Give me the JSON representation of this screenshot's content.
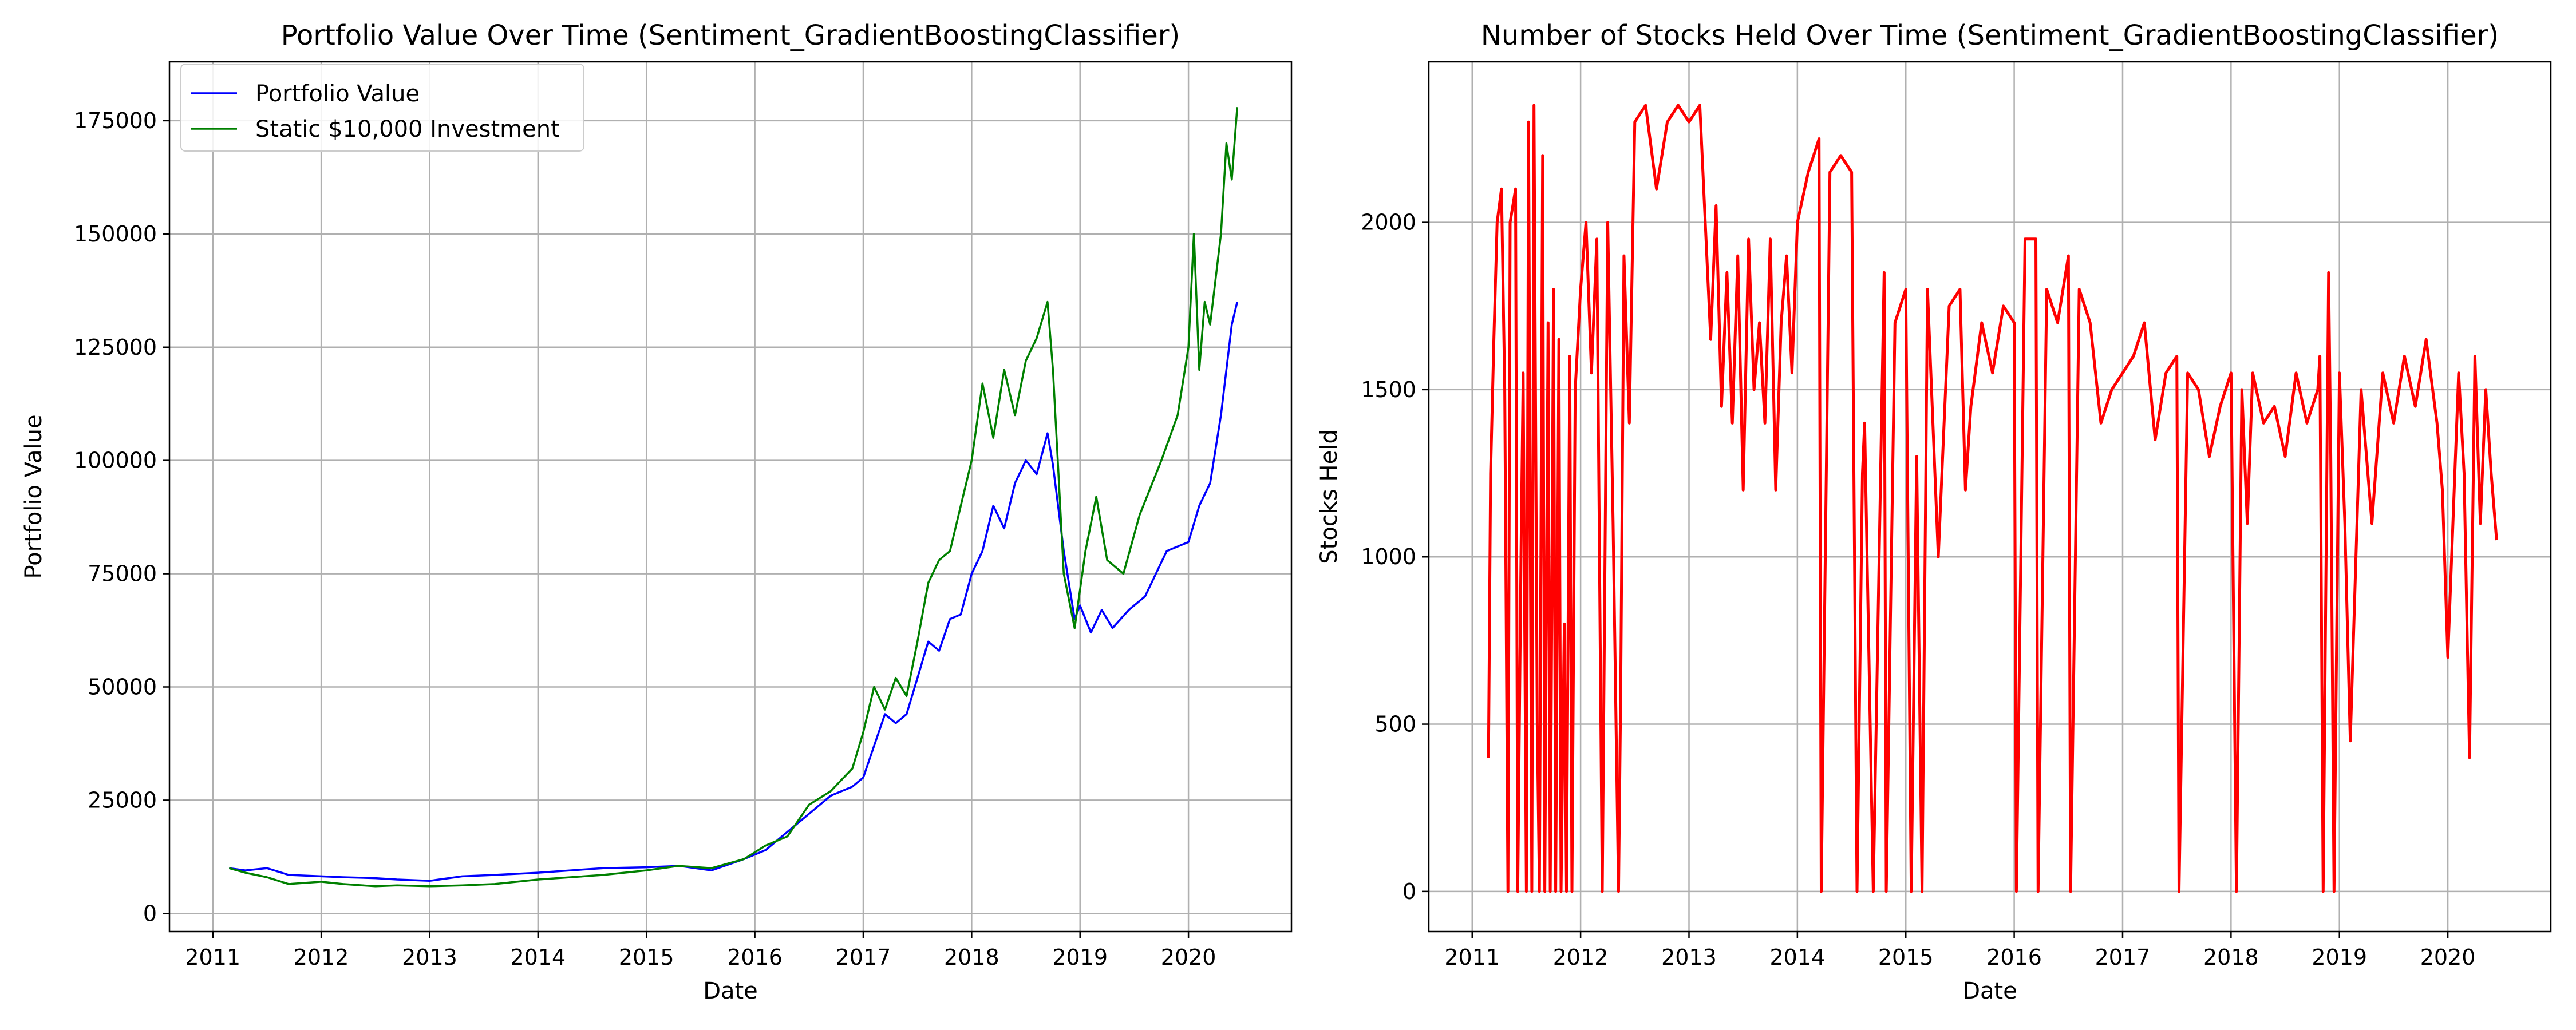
{
  "colors": {
    "portfolio": "#0000ff",
    "static": "#008000",
    "stocks": "#ff0000",
    "grid": "#b0b0b0"
  },
  "charts": [
    {
      "title": "Portfolio Value Over Time (Sentiment_GradientBoostingClassifier)",
      "xlabel": "Date",
      "ylabel": "Portfolio Value",
      "xticks": [
        "2011",
        "2012",
        "2013",
        "2014",
        "2015",
        "2016",
        "2017",
        "2018",
        "2019",
        "2020"
      ],
      "yticks": [
        "0",
        "25000",
        "50000",
        "75000",
        "100000",
        "125000",
        "150000",
        "175000"
      ],
      "legend": [
        "Portfolio Value",
        "Static $10,000 Investment"
      ]
    },
    {
      "title": "Number of Stocks Held Over Time (Sentiment_GradientBoostingClassifier)",
      "xlabel": "Date",
      "ylabel": "Stocks Held",
      "xticks": [
        "2011",
        "2012",
        "2013",
        "2014",
        "2015",
        "2016",
        "2017",
        "2018",
        "2019",
        "2020"
      ],
      "yticks": [
        "0",
        "500",
        "1000",
        "1500",
        "2000"
      ]
    }
  ],
  "chart_data": [
    {
      "type": "line",
      "title": "Portfolio Value Over Time (Sentiment_GradientBoostingClassifier)",
      "xlabel": "Date",
      "ylabel": "Portfolio Value",
      "xlim": [
        2010.6,
        2020.95
      ],
      "ylim": [
        -4000,
        188000
      ],
      "grid": true,
      "legend_position": "top-left",
      "series": [
        {
          "name": "Portfolio Value",
          "color": "#0000ff",
          "x": [
            2011.15,
            2011.3,
            2011.5,
            2011.7,
            2012.0,
            2012.2,
            2012.5,
            2012.7,
            2013.0,
            2013.3,
            2013.6,
            2014.0,
            2014.3,
            2014.6,
            2015.0,
            2015.3,
            2015.6,
            2015.9,
            2016.1,
            2016.3,
            2016.5,
            2016.7,
            2016.9,
            2017.0,
            2017.2,
            2017.3,
            2017.4,
            2017.5,
            2017.6,
            2017.7,
            2017.8,
            2017.9,
            2018.0,
            2018.1,
            2018.2,
            2018.3,
            2018.4,
            2018.5,
            2018.6,
            2018.7,
            2018.75,
            2018.85,
            2018.95,
            2019.0,
            2019.1,
            2019.2,
            2019.3,
            2019.45,
            2019.6,
            2019.8,
            2020.0,
            2020.1,
            2020.2,
            2020.3,
            2020.4,
            2020.45
          ],
          "y": [
            10000,
            9500,
            10000,
            8500,
            8200,
            8000,
            7800,
            7500,
            7200,
            8200,
            8500,
            9000,
            9500,
            10000,
            10200,
            10500,
            9500,
            12000,
            14000,
            18000,
            22000,
            26000,
            28000,
            30000,
            44000,
            42000,
            44000,
            52000,
            60000,
            58000,
            65000,
            66000,
            75000,
            80000,
            90000,
            85000,
            95000,
            100000,
            97000,
            106000,
            99000,
            80000,
            65000,
            68000,
            62000,
            67000,
            63000,
            67000,
            70000,
            80000,
            82000,
            90000,
            95000,
            110000,
            130000,
            135000
          ]
        },
        {
          "name": "Static $10,000 Investment",
          "color": "#008000",
          "x": [
            2011.15,
            2011.3,
            2011.5,
            2011.7,
            2012.0,
            2012.2,
            2012.5,
            2012.7,
            2013.0,
            2013.3,
            2013.6,
            2014.0,
            2014.3,
            2014.6,
            2015.0,
            2015.3,
            2015.6,
            2015.9,
            2016.1,
            2016.3,
            2016.5,
            2016.7,
            2016.9,
            2017.0,
            2017.1,
            2017.2,
            2017.3,
            2017.4,
            2017.5,
            2017.6,
            2017.7,
            2017.8,
            2017.9,
            2018.0,
            2018.1,
            2018.2,
            2018.3,
            2018.4,
            2018.5,
            2018.6,
            2018.7,
            2018.75,
            2018.85,
            2018.95,
            2019.05,
            2019.15,
            2019.25,
            2019.4,
            2019.55,
            2019.75,
            2019.9,
            2020.0,
            2020.05,
            2020.1,
            2020.15,
            2020.2,
            2020.3,
            2020.35,
            2020.4,
            2020.45
          ],
          "y": [
            10000,
            9000,
            8000,
            6500,
            7000,
            6500,
            6000,
            6200,
            6000,
            6200,
            6500,
            7500,
            8000,
            8500,
            9500,
            10500,
            10000,
            12000,
            15000,
            17000,
            24000,
            27000,
            32000,
            40000,
            50000,
            45000,
            52000,
            48000,
            60000,
            73000,
            78000,
            80000,
            90000,
            100000,
            117000,
            105000,
            120000,
            110000,
            122000,
            127000,
            135000,
            120000,
            75000,
            63000,
            80000,
            92000,
            78000,
            75000,
            88000,
            100000,
            110000,
            125000,
            150000,
            120000,
            135000,
            130000,
            150000,
            170000,
            162000,
            178000
          ]
        }
      ]
    },
    {
      "type": "line",
      "title": "Number of Stocks Held Over Time (Sentiment_GradientBoostingClassifier)",
      "xlabel": "Date",
      "ylabel": "Stocks Held",
      "xlim": [
        2010.6,
        2020.95
      ],
      "ylim": [
        -120,
        2480
      ],
      "grid": true,
      "series": [
        {
          "color": "#ff0000",
          "x": [
            2011.15,
            2011.17,
            2011.2,
            2011.23,
            2011.27,
            2011.3,
            2011.33,
            2011.35,
            2011.4,
            2011.42,
            2011.45,
            2011.47,
            2011.5,
            2011.52,
            2011.55,
            2011.57,
            2011.6,
            2011.62,
            2011.65,
            2011.67,
            2011.7,
            2011.72,
            2011.75,
            2011.77,
            2011.8,
            2011.82,
            2011.85,
            2011.87,
            2011.9,
            2011.92,
            2011.95,
            2012.0,
            2012.05,
            2012.1,
            2012.15,
            2012.2,
            2012.22,
            2012.25,
            2012.3,
            2012.35,
            2012.37,
            2012.4,
            2012.45,
            2012.5,
            2012.6,
            2012.7,
            2012.8,
            2012.9,
            2013.0,
            2013.1,
            2013.2,
            2013.25,
            2013.3,
            2013.35,
            2013.4,
            2013.45,
            2013.5,
            2013.55,
            2013.6,
            2013.65,
            2013.7,
            2013.75,
            2013.8,
            2013.85,
            2013.9,
            2013.95,
            2014.0,
            2014.1,
            2014.2,
            2014.22,
            2014.3,
            2014.4,
            2014.5,
            2014.55,
            2014.6,
            2014.62,
            2014.7,
            2014.8,
            2014.82,
            2014.9,
            2015.0,
            2015.05,
            2015.1,
            2015.15,
            2015.2,
            2015.3,
            2015.4,
            2015.5,
            2015.55,
            2015.6,
            2015.7,
            2015.8,
            2015.9,
            2016.0,
            2016.02,
            2016.1,
            2016.2,
            2016.22,
            2016.3,
            2016.4,
            2016.5,
            2016.52,
            2016.6,
            2016.7,
            2016.8,
            2016.9,
            2017.0,
            2017.1,
            2017.2,
            2017.3,
            2017.4,
            2017.5,
            2017.52,
            2017.6,
            2017.7,
            2017.8,
            2017.9,
            2018.0,
            2018.05,
            2018.1,
            2018.15,
            2018.2,
            2018.3,
            2018.4,
            2018.5,
            2018.6,
            2018.7,
            2018.8,
            2018.82,
            2018.85,
            2018.9,
            2018.92,
            2018.95,
            2019.0,
            2019.05,
            2019.1,
            2019.2,
            2019.3,
            2019.4,
            2019.5,
            2019.6,
            2019.7,
            2019.8,
            2019.9,
            2019.95,
            2020.0,
            2020.1,
            2020.15,
            2020.2,
            2020.25,
            2020.3,
            2020.35,
            2020.4,
            2020.45
          ],
          "y": [
            400,
            1250,
            1650,
            2000,
            2100,
            1500,
            0,
            2000,
            2100,
            0,
            1000,
            1550,
            0,
            2300,
            0,
            2350,
            500,
            0,
            2200,
            0,
            1700,
            0,
            1800,
            0,
            1650,
            0,
            800,
            0,
            1600,
            0,
            1500,
            1800,
            2000,
            1550,
            1950,
            0,
            800,
            2000,
            1100,
            0,
            600,
            1900,
            1400,
            2300,
            2350,
            2100,
            2300,
            2350,
            2300,
            2350,
            1650,
            2050,
            1450,
            1850,
            1400,
            1900,
            1200,
            1950,
            1500,
            1700,
            1400,
            1950,
            1200,
            1700,
            1900,
            1550,
            2000,
            2150,
            2250,
            0,
            2150,
            2200,
            2150,
            0,
            1250,
            1400,
            0,
            1850,
            0,
            1700,
            1800,
            0,
            1300,
            0,
            1800,
            1000,
            1750,
            1800,
            1200,
            1450,
            1700,
            1550,
            1750,
            1700,
            0,
            1950,
            1950,
            0,
            1800,
            1700,
            1900,
            0,
            1800,
            1700,
            1400,
            1500,
            1550,
            1600,
            1700,
            1350,
            1550,
            1600,
            0,
            1550,
            1500,
            1300,
            1450,
            1550,
            0,
            1500,
            1100,
            1550,
            1400,
            1450,
            1300,
            1550,
            1400,
            1500,
            1600,
            0,
            1850,
            1300,
            0,
            1550,
            1100,
            450,
            1500,
            1100,
            1550,
            1400,
            1600,
            1450,
            1650,
            1400,
            1200,
            700,
            1550,
            1250,
            400,
            1600,
            1100,
            1500,
            1250,
            1050
          ]
        }
      ]
    }
  ]
}
